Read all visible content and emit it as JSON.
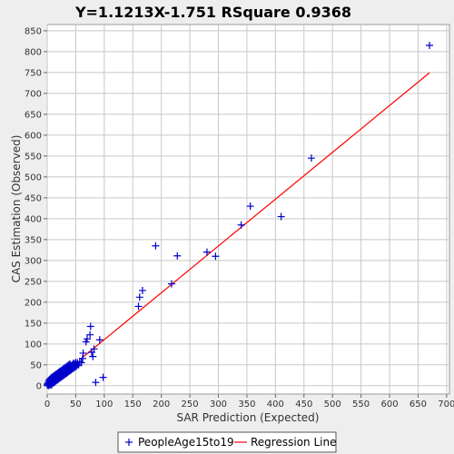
{
  "chart_data": {
    "type": "scatter",
    "title": "Y=1.1213X-1.751    RSquare 0.9368",
    "xlabel": "SAR Prediction (Expected)",
    "ylabel": "CAS Estimation (Observed)",
    "xlim": [
      0,
      705
    ],
    "ylim": [
      -20,
      865
    ],
    "xticks": [
      0,
      50,
      100,
      150,
      200,
      250,
      300,
      350,
      400,
      450,
      500,
      550,
      600,
      650,
      700
    ],
    "yticks": [
      0,
      50,
      100,
      150,
      200,
      250,
      300,
      350,
      400,
      450,
      500,
      550,
      600,
      650,
      700,
      750,
      800,
      850
    ],
    "grid": true,
    "legend_position": "bottom",
    "series": [
      {
        "name": "PeopleAge15to19",
        "kind": "scatter",
        "color": "#0000cc",
        "marker": "plus",
        "points": [
          [
            0,
            2
          ],
          [
            1,
            5
          ],
          [
            2,
            0
          ],
          [
            2,
            8
          ],
          [
            3,
            3
          ],
          [
            3,
            12
          ],
          [
            4,
            6
          ],
          [
            4,
            15
          ],
          [
            5,
            1
          ],
          [
            5,
            10
          ],
          [
            6,
            4
          ],
          [
            6,
            18
          ],
          [
            7,
            9
          ],
          [
            7,
            14
          ],
          [
            8,
            2
          ],
          [
            8,
            20
          ],
          [
            9,
            11
          ],
          [
            9,
            16
          ],
          [
            10,
            6
          ],
          [
            10,
            22
          ],
          [
            11,
            13
          ],
          [
            11,
            18
          ],
          [
            12,
            8
          ],
          [
            12,
            24
          ],
          [
            13,
            15
          ],
          [
            13,
            20
          ],
          [
            14,
            10
          ],
          [
            14,
            26
          ],
          [
            15,
            17
          ],
          [
            15,
            22
          ],
          [
            16,
            12
          ],
          [
            16,
            28
          ],
          [
            17,
            19
          ],
          [
            17,
            24
          ],
          [
            18,
            14
          ],
          [
            18,
            30
          ],
          [
            19,
            21
          ],
          [
            19,
            26
          ],
          [
            20,
            16
          ],
          [
            20,
            32
          ],
          [
            21,
            23
          ],
          [
            21,
            28
          ],
          [
            22,
            18
          ],
          [
            22,
            34
          ],
          [
            23,
            25
          ],
          [
            23,
            30
          ],
          [
            24,
            20
          ],
          [
            24,
            36
          ],
          [
            25,
            27
          ],
          [
            25,
            32
          ],
          [
            26,
            22
          ],
          [
            26,
            38
          ],
          [
            27,
            29
          ],
          [
            27,
            34
          ],
          [
            28,
            24
          ],
          [
            28,
            40
          ],
          [
            29,
            31
          ],
          [
            29,
            36
          ],
          [
            30,
            26
          ],
          [
            30,
            42
          ],
          [
            31,
            33
          ],
          [
            31,
            38
          ],
          [
            32,
            28
          ],
          [
            32,
            44
          ],
          [
            33,
            35
          ],
          [
            33,
            40
          ],
          [
            34,
            30
          ],
          [
            34,
            46
          ],
          [
            35,
            37
          ],
          [
            35,
            42
          ],
          [
            36,
            32
          ],
          [
            36,
            48
          ],
          [
            37,
            39
          ],
          [
            37,
            44
          ],
          [
            38,
            34
          ],
          [
            38,
            50
          ],
          [
            39,
            41
          ],
          [
            39,
            46
          ],
          [
            40,
            36
          ],
          [
            40,
            52
          ],
          [
            42,
            38
          ],
          [
            42,
            48
          ],
          [
            44,
            40
          ],
          [
            44,
            50
          ],
          [
            46,
            42
          ],
          [
            46,
            54
          ],
          [
            48,
            44
          ],
          [
            48,
            52
          ],
          [
            50,
            46
          ],
          [
            50,
            56
          ],
          [
            52,
            48
          ],
          [
            53,
            55
          ],
          [
            55,
            50
          ],
          [
            57,
            58
          ],
          [
            60,
            55
          ],
          [
            62,
            65
          ],
          [
            63,
            78
          ],
          [
            68,
            105
          ],
          [
            70,
            112
          ],
          [
            75,
            122
          ],
          [
            76,
            142
          ],
          [
            78,
            80
          ],
          [
            80,
            70
          ],
          [
            82,
            88
          ],
          [
            85,
            8
          ],
          [
            92,
            110
          ],
          [
            98,
            20
          ],
          [
            160,
            190
          ],
          [
            162,
            212
          ],
          [
            167,
            228
          ],
          [
            190,
            335
          ],
          [
            218,
            244
          ],
          [
            228,
            311
          ],
          [
            280,
            320
          ],
          [
            295,
            310
          ],
          [
            340,
            385
          ],
          [
            356,
            430
          ],
          [
            410,
            405
          ],
          [
            463,
            545
          ],
          [
            670,
            815
          ]
        ]
      },
      {
        "name": "Regression Line",
        "kind": "line",
        "color": "#ff0000",
        "slope": 1.1213,
        "intercept": -1.751,
        "x_range": [
          60,
          670
        ]
      }
    ]
  }
}
